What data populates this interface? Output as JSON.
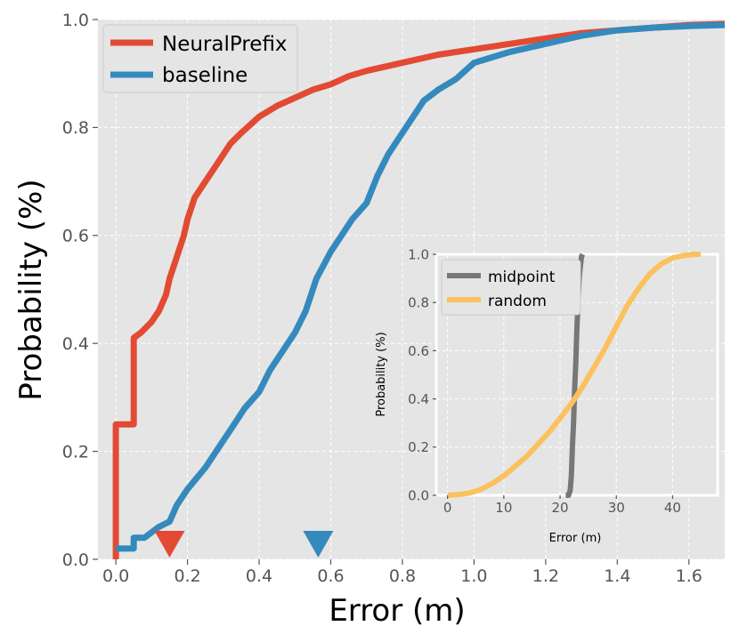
{
  "chart_data": [
    {
      "type": "line",
      "name": "main-cdf",
      "xlabel": "Error (m)",
      "ylabel": "Probability (%)",
      "xlim": [
        -0.05,
        1.7
      ],
      "ylim": [
        0.0,
        1.0
      ],
      "xticks": [
        0.0,
        0.2,
        0.4,
        0.6,
        0.8,
        1.0,
        1.2,
        1.4,
        1.6
      ],
      "xtick_labels": [
        "0.0",
        "0.2",
        "0.4",
        "0.6",
        "0.8",
        "1.0",
        "1.2",
        "1.4",
        "1.6"
      ],
      "yticks": [
        0.0,
        0.2,
        0.4,
        0.6,
        0.8,
        1.0
      ],
      "ytick_labels": [
        "0.0",
        "0.2",
        "0.4",
        "0.6",
        "0.8",
        "1.0"
      ],
      "grid": true,
      "legend_position": "top-left",
      "series": [
        {
          "name": "NeuralPrefix",
          "color": "#E24A33",
          "x": [
            0.0,
            0.0,
            0.05,
            0.05,
            0.07,
            0.1,
            0.12,
            0.14,
            0.15,
            0.17,
            0.19,
            0.2,
            0.22,
            0.25,
            0.28,
            0.3,
            0.32,
            0.35,
            0.4,
            0.45,
            0.5,
            0.55,
            0.6,
            0.65,
            0.7,
            0.8,
            0.9,
            1.0,
            1.1,
            1.2,
            1.3,
            1.4,
            1.5,
            1.6,
            1.7
          ],
          "y": [
            0.0,
            0.25,
            0.25,
            0.41,
            0.42,
            0.44,
            0.46,
            0.49,
            0.52,
            0.56,
            0.6,
            0.63,
            0.67,
            0.7,
            0.73,
            0.75,
            0.77,
            0.79,
            0.82,
            0.84,
            0.855,
            0.87,
            0.88,
            0.895,
            0.905,
            0.92,
            0.935,
            0.945,
            0.955,
            0.965,
            0.975,
            0.98,
            0.985,
            0.99,
            0.992
          ]
        },
        {
          "name": "baseline",
          "color": "#348ABD",
          "x": [
            0.0,
            0.05,
            0.05,
            0.08,
            0.1,
            0.12,
            0.15,
            0.17,
            0.2,
            0.25,
            0.28,
            0.3,
            0.33,
            0.36,
            0.4,
            0.43,
            0.46,
            0.5,
            0.53,
            0.56,
            0.6,
            0.63,
            0.66,
            0.7,
            0.73,
            0.76,
            0.8,
            0.83,
            0.86,
            0.9,
            0.95,
            1.0,
            1.1,
            1.2,
            1.3,
            1.4,
            1.5,
            1.6,
            1.7
          ],
          "y": [
            0.02,
            0.02,
            0.04,
            0.04,
            0.05,
            0.06,
            0.07,
            0.1,
            0.13,
            0.17,
            0.2,
            0.22,
            0.25,
            0.28,
            0.31,
            0.35,
            0.38,
            0.42,
            0.46,
            0.52,
            0.57,
            0.6,
            0.63,
            0.66,
            0.71,
            0.75,
            0.79,
            0.82,
            0.85,
            0.87,
            0.89,
            0.92,
            0.94,
            0.955,
            0.97,
            0.98,
            0.985,
            0.988,
            0.99
          ]
        }
      ],
      "markers": [
        {
          "name": "neuralprefix-median-marker",
          "x": 0.15,
          "color": "#E24A33"
        },
        {
          "name": "baseline-median-marker",
          "x": 0.565,
          "color": "#348ABD"
        }
      ]
    },
    {
      "type": "line",
      "name": "inset-cdf",
      "xlabel": "Error (m)",
      "ylabel": "Probability (%)",
      "xlim": [
        -2,
        48
      ],
      "ylim": [
        0.0,
        1.0
      ],
      "xticks": [
        0,
        10,
        20,
        30,
        40
      ],
      "xtick_labels": [
        "0",
        "10",
        "20",
        "30",
        "40"
      ],
      "yticks": [
        0.0,
        0.2,
        0.4,
        0.6,
        0.8,
        1.0
      ],
      "ytick_labels": [
        "0.0",
        "0.2",
        "0.4",
        "0.6",
        "0.8",
        "1.0"
      ],
      "grid": true,
      "legend_position": "top-left",
      "series": [
        {
          "name": "midpoint",
          "color": "#777777",
          "x": [
            21.0,
            21.5,
            21.8,
            22.0,
            22.2,
            22.4,
            22.6,
            22.8,
            23.0,
            23.2,
            23.4,
            23.6,
            23.8,
            24.0
          ],
          "y": [
            0.0,
            0.0,
            0.02,
            0.08,
            0.2,
            0.3,
            0.45,
            0.55,
            0.7,
            0.8,
            0.9,
            0.95,
            0.99,
            1.0
          ]
        },
        {
          "name": "random",
          "color": "#FBC15E",
          "x": [
            0,
            2,
            4,
            6,
            8,
            10,
            12,
            14,
            16,
            18,
            20,
            22,
            24,
            26,
            28,
            30,
            32,
            34,
            36,
            38,
            40,
            42,
            44,
            45
          ],
          "y": [
            0.0,
            0.003,
            0.01,
            0.025,
            0.05,
            0.08,
            0.12,
            0.16,
            0.21,
            0.26,
            0.32,
            0.38,
            0.45,
            0.53,
            0.61,
            0.7,
            0.79,
            0.86,
            0.92,
            0.96,
            0.985,
            0.995,
            1.0,
            1.0
          ]
        }
      ]
    }
  ]
}
